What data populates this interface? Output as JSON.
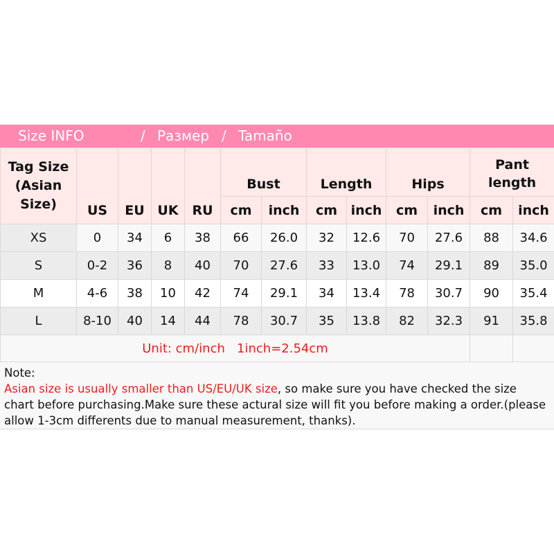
{
  "title": {
    "part1": "Size INFO",
    "sep1": "/",
    "part2": "Размер",
    "sep2": "/",
    "part3": "Tamaño"
  },
  "colors": {
    "title_bar": "#ff88b0",
    "header_bg": "#ffe9e9",
    "accent_red": "#ee1c1c"
  },
  "header": {
    "tag_size": "Tag Size (Asian Size)",
    "us": "US",
    "eu": "EU",
    "uk": "UK",
    "ru": "RU",
    "bust": "Bust",
    "length": "Length",
    "hips": "Hips",
    "pant_length": "Pant length",
    "cm": "cm",
    "inch": "inch"
  },
  "rows": [
    [
      "XS",
      "0",
      "34",
      "6",
      "38",
      "66",
      "26.0",
      "32",
      "12.6",
      "70",
      "27.6",
      "88",
      "34.6"
    ],
    [
      "S",
      "0-2",
      "36",
      "8",
      "40",
      "70",
      "27.6",
      "33",
      "13.0",
      "74",
      "29.1",
      "89",
      "35.0"
    ],
    [
      "M",
      "4-6",
      "38",
      "10",
      "42",
      "74",
      "29.1",
      "34",
      "13.4",
      "78",
      "30.7",
      "90",
      "35.4"
    ],
    [
      "L",
      "8-10",
      "40",
      "14",
      "44",
      "78",
      "30.7",
      "35",
      "13.8",
      "82",
      "32.3",
      "91",
      "35.8"
    ]
  ],
  "unit_note": "Unit: cm/inch   1inch=2.54cm",
  "note": {
    "label": "Note:",
    "red_text": "Asian size is usually smaller than US/EU/UK size",
    "rest_text": ", so make sure you have checked the size chart before purchasing.Make sure these actural size will fit you before making a order.(please allow 1-3cm differents due to manual measurement, thanks)."
  }
}
